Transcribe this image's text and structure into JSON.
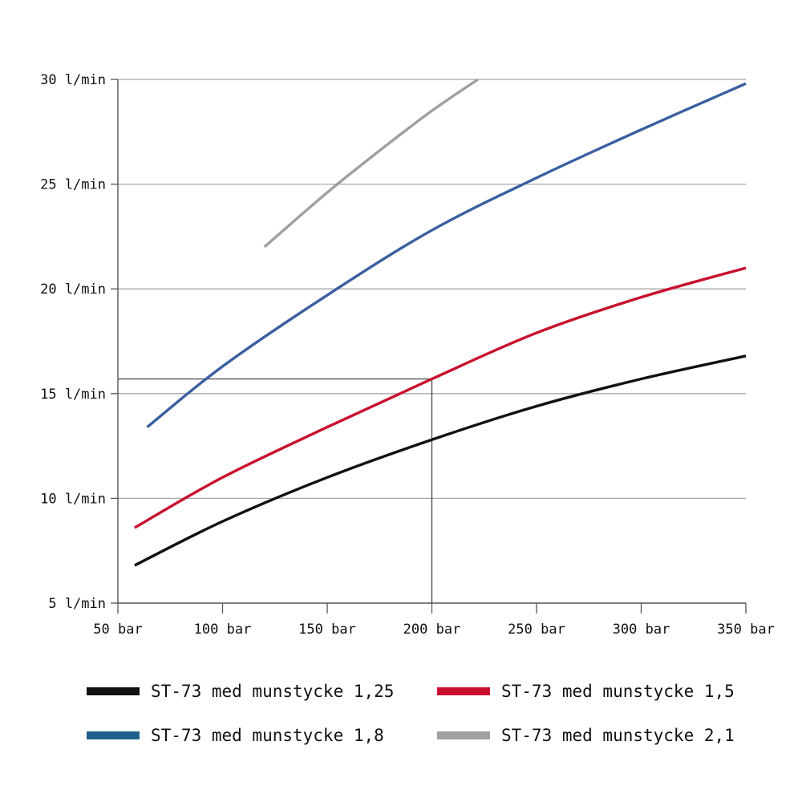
{
  "chart_data": {
    "type": "line",
    "xlabel": "",
    "ylabel": "",
    "xlim": [
      50,
      350
    ],
    "ylim": [
      5,
      30
    ],
    "x_ticks": [
      {
        "value": 50,
        "label": "50 bar"
      },
      {
        "value": 100,
        "label": "100 bar"
      },
      {
        "value": 150,
        "label": "150 bar"
      },
      {
        "value": 200,
        "label": "200 bar"
      },
      {
        "value": 250,
        "label": "250 bar"
      },
      {
        "value": 300,
        "label": "300 bar"
      },
      {
        "value": 350,
        "label": "350 bar"
      }
    ],
    "y_ticks": [
      {
        "value": 30,
        "label": "30 l/min"
      },
      {
        "value": 25,
        "label": "25 l/min"
      },
      {
        "value": 20,
        "label": "20 l/min"
      },
      {
        "value": 15,
        "label": "15 l/min"
      },
      {
        "value": 10,
        "label": "10 l/min"
      },
      {
        "value": 5,
        "label": "5 l/min"
      }
    ],
    "grid": "horizontal",
    "legend_position": "bottom",
    "series": [
      {
        "name": "ST-73 med munstycke 1,25",
        "color": "#111111",
        "x": [
          58,
          100,
          150,
          200,
          250,
          300,
          350
        ],
        "y": [
          6.8,
          8.9,
          11.0,
          12.8,
          14.4,
          15.7,
          16.8
        ]
      },
      {
        "name": "ST-73 med munstycke 1,5",
        "color": "#c8102e",
        "x": [
          58,
          100,
          150,
          200,
          250,
          300,
          350
        ],
        "y": [
          8.6,
          11.0,
          13.4,
          15.7,
          17.9,
          19.6,
          21.0
        ]
      },
      {
        "name": "ST-73 med munstycke 1,8",
        "color": "#3a5fa0",
        "x": [
          64,
          100,
          150,
          200,
          250,
          300,
          350
        ],
        "y": [
          13.4,
          16.3,
          19.7,
          22.8,
          25.3,
          27.6,
          29.8
        ]
      },
      {
        "name": "ST-73 med munstycke 2,1",
        "color": "#a0a0a0",
        "x": [
          120,
          150,
          175,
          200,
          222
        ],
        "y": [
          22.0,
          24.6,
          26.6,
          28.5,
          30.0
        ]
      }
    ],
    "annotations": [
      {
        "type": "reference-lines",
        "x": 200,
        "y": 15.7
      }
    ]
  },
  "legend": {
    "swatch_colors": [
      "#111111",
      "#c8102e",
      "#1f5f8b",
      "#a0a0a0"
    ]
  }
}
